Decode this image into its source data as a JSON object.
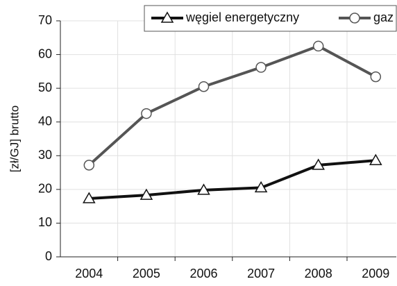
{
  "chart_data": {
    "type": "line",
    "y_label": "[zł/GJ] brutto",
    "categories": [
      "2004",
      "2005",
      "2006",
      "2007",
      "2008",
      "2009"
    ],
    "series": [
      {
        "name": "węgiel energetyczny",
        "color": "#111111",
        "marker": "triangle",
        "values": [
          17.3,
          18.3,
          19.8,
          20.5,
          27.2,
          28.6
        ]
      },
      {
        "name": "gaz",
        "color": "#555555",
        "marker": "circle",
        "values": [
          27.2,
          42.5,
          50.5,
          56.2,
          62.5,
          53.4
        ]
      }
    ],
    "ylim": [
      0,
      70
    ],
    "yticks": [
      0,
      10,
      20,
      30,
      40,
      50,
      60,
      70
    ],
    "grid": true,
    "legend": "top-right"
  }
}
